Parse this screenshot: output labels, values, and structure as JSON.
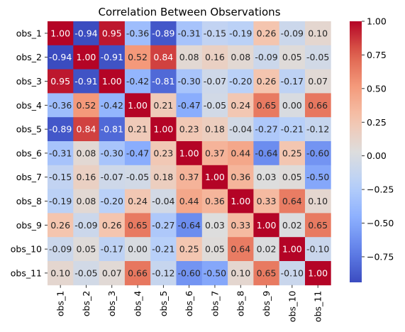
{
  "chart_data": {
    "type": "heatmap",
    "title": "Correlation Between Observations",
    "xlabel": "",
    "ylabel": "",
    "rows": [
      "obs_1",
      "obs_2",
      "obs_3",
      "obs_4",
      "obs_5",
      "obs_6",
      "obs_7",
      "obs_8",
      "obs_9",
      "obs_10",
      "obs_11"
    ],
    "columns": [
      "obs_1",
      "obs_2",
      "obs_3",
      "obs_4",
      "obs_5",
      "obs_6",
      "obs_7",
      "obs_8",
      "obs_9",
      "obs_10",
      "obs_11"
    ],
    "values": [
      [
        1.0,
        -0.94,
        0.95,
        -0.36,
        -0.89,
        -0.31,
        -0.15,
        -0.19,
        0.26,
        -0.09,
        0.1
      ],
      [
        -0.94,
        1.0,
        -0.91,
        0.52,
        0.84,
        0.08,
        0.16,
        0.08,
        -0.09,
        0.05,
        -0.05
      ],
      [
        0.95,
        -0.91,
        1.0,
        -0.42,
        -0.81,
        -0.3,
        -0.07,
        -0.2,
        0.26,
        -0.17,
        0.07
      ],
      [
        -0.36,
        0.52,
        -0.42,
        1.0,
        0.21,
        -0.47,
        -0.05,
        0.24,
        0.65,
        -0.0,
        0.66
      ],
      [
        -0.89,
        0.84,
        -0.81,
        0.21,
        1.0,
        0.23,
        0.18,
        -0.04,
        -0.27,
        -0.21,
        -0.12
      ],
      [
        -0.31,
        0.08,
        -0.3,
        -0.47,
        0.23,
        1.0,
        0.37,
        0.44,
        -0.64,
        0.25,
        -0.6
      ],
      [
        -0.15,
        0.16,
        -0.07,
        -0.05,
        0.18,
        0.37,
        1.0,
        0.36,
        0.03,
        0.05,
        -0.5
      ],
      [
        -0.19,
        0.08,
        -0.2,
        0.24,
        -0.04,
        0.44,
        0.36,
        1.0,
        0.33,
        0.64,
        0.1
      ],
      [
        0.26,
        -0.09,
        0.26,
        0.65,
        -0.27,
        -0.64,
        0.03,
        0.33,
        1.0,
        0.02,
        0.65
      ],
      [
        -0.09,
        0.05,
        -0.17,
        -0.0,
        -0.21,
        0.25,
        0.05,
        0.64,
        0.02,
        1.0,
        -0.1
      ],
      [
        0.1,
        -0.05,
        0.07,
        0.66,
        -0.12,
        -0.6,
        -0.5,
        0.1,
        0.65,
        -0.1,
        1.0
      ]
    ],
    "value_format": "0.00",
    "colormap": "coolwarm",
    "color_range": [
      -0.94,
      1.0
    ],
    "colorbar_ticks": [
      1.0,
      0.75,
      0.5,
      0.25,
      0.0,
      -0.25,
      -0.5,
      -0.75
    ],
    "colorbar_tick_labels": [
      "1.00",
      "0.75",
      "0.50",
      "0.25",
      "0.00",
      "−0.25",
      "−0.50",
      "−0.75"
    ],
    "colorbar_placement": "right",
    "grid": false,
    "legend": "none"
  }
}
